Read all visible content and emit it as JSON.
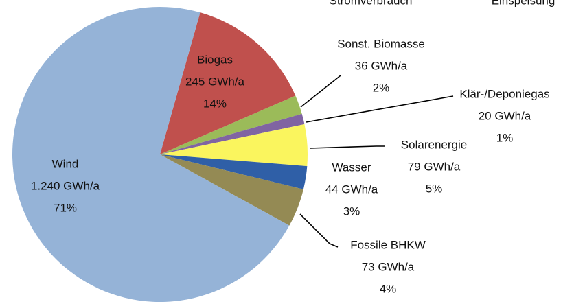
{
  "chart_data": {
    "type": "pie",
    "header_texts": [
      "Stromverbrauch",
      "Einspeisung"
    ],
    "categories": [
      "Biogas",
      "Sonst. Biomasse",
      "Klär-/Deponiegas",
      "Solarenergie",
      "Wasser",
      "Fossile BHKW",
      "Wind"
    ],
    "values": [
      245,
      36,
      20,
      79,
      44,
      73,
      1240
    ],
    "value_labels": [
      "245 GWh/a",
      "36 GWh/a",
      "20 GWh/a",
      "79 GWh/a",
      "44 GWh/a",
      "73 GWh/a",
      "1.240 GWh/a"
    ],
    "percents": [
      14,
      2,
      1,
      5,
      3,
      4,
      71
    ],
    "percent_labels": [
      "14%",
      "2%",
      "1%",
      "5%",
      "3%",
      "4%",
      "71%"
    ],
    "colors": [
      "#c0504d",
      "#9bbb59",
      "#8064a2",
      "#faf55e",
      "#2f5fa7",
      "#948a54",
      "#95b3d7"
    ]
  }
}
